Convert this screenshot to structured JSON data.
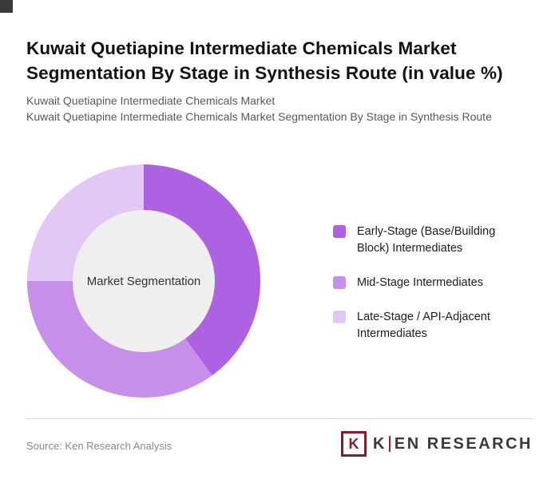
{
  "page": {
    "title": "Kuwait Quetiapine Intermediate Chemicals Market Segmentation By Stage in Synthesis Route (in value %)",
    "subtitle_line1": "Kuwait Quetiapine Intermediate Chemicals Market",
    "subtitle_line2": "Kuwait Quetiapine Intermediate Chemicals Market Segmentation By Stage in Synthesis Route"
  },
  "chart_data": {
    "type": "pie",
    "donut": true,
    "center_label": "Market Segmentation",
    "legend_position": "right",
    "start_angle_deg": 0,
    "direction": "clockwise",
    "series": [
      {
        "name": "Early-Stage (Base/Building Block) Intermediates",
        "value": 40,
        "color": "#ae61e3"
      },
      {
        "name": "Mid-Stage Intermediates",
        "value": 35,
        "color": "#c78fe9"
      },
      {
        "name": "Late-Stage / API-Adjacent Intermediates",
        "value": 25,
        "color": "#e3c7f5"
      }
    ],
    "hole_color": "#efefef"
  },
  "footer": {
    "source": "Source: Ken Research Analysis",
    "logo": {
      "icon_letter": "K",
      "wordmark_k": "K",
      "wordmark_rest": "EN RESEARCH",
      "brand_color": "#7d1f2d"
    }
  }
}
